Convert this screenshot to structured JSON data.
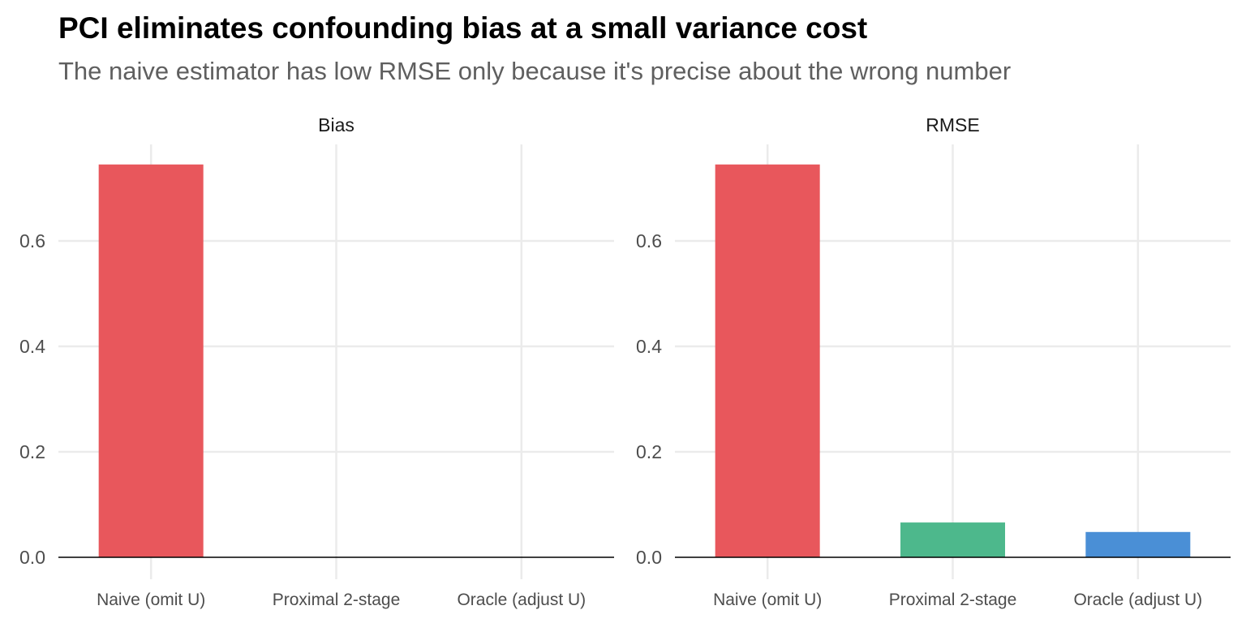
{
  "chart_data": [
    {
      "type": "bar",
      "title": "PCI eliminates confounding bias at a small variance cost",
      "subtitle": "The naive estimator has low RMSE only because it's precise about the wrong number",
      "panel": "Bias",
      "categories": [
        "Naive (omit U)",
        "Proximal 2-stage",
        "Oracle (adjust U)"
      ],
      "values": [
        0.745,
        0.0,
        0.0
      ],
      "colors": [
        "#E8575C",
        "#4DB88C",
        "#4A8FD6"
      ],
      "yticks": [
        "0.0",
        "0.2",
        "0.4",
        "0.6"
      ],
      "ylim": [
        0,
        0.78
      ],
      "xlabel": "",
      "ylabel": "",
      "grid": true
    },
    {
      "type": "bar",
      "panel": "RMSE",
      "categories": [
        "Naive (omit U)",
        "Proximal 2-stage",
        "Oracle (adjust U)"
      ],
      "values": [
        0.745,
        0.066,
        0.048
      ],
      "colors": [
        "#E8575C",
        "#4DB88C",
        "#4A8FD6"
      ],
      "yticks": [
        "0.0",
        "0.2",
        "0.4",
        "0.6"
      ],
      "ylim": [
        0,
        0.78
      ],
      "xlabel": "",
      "ylabel": "",
      "grid": true
    }
  ]
}
